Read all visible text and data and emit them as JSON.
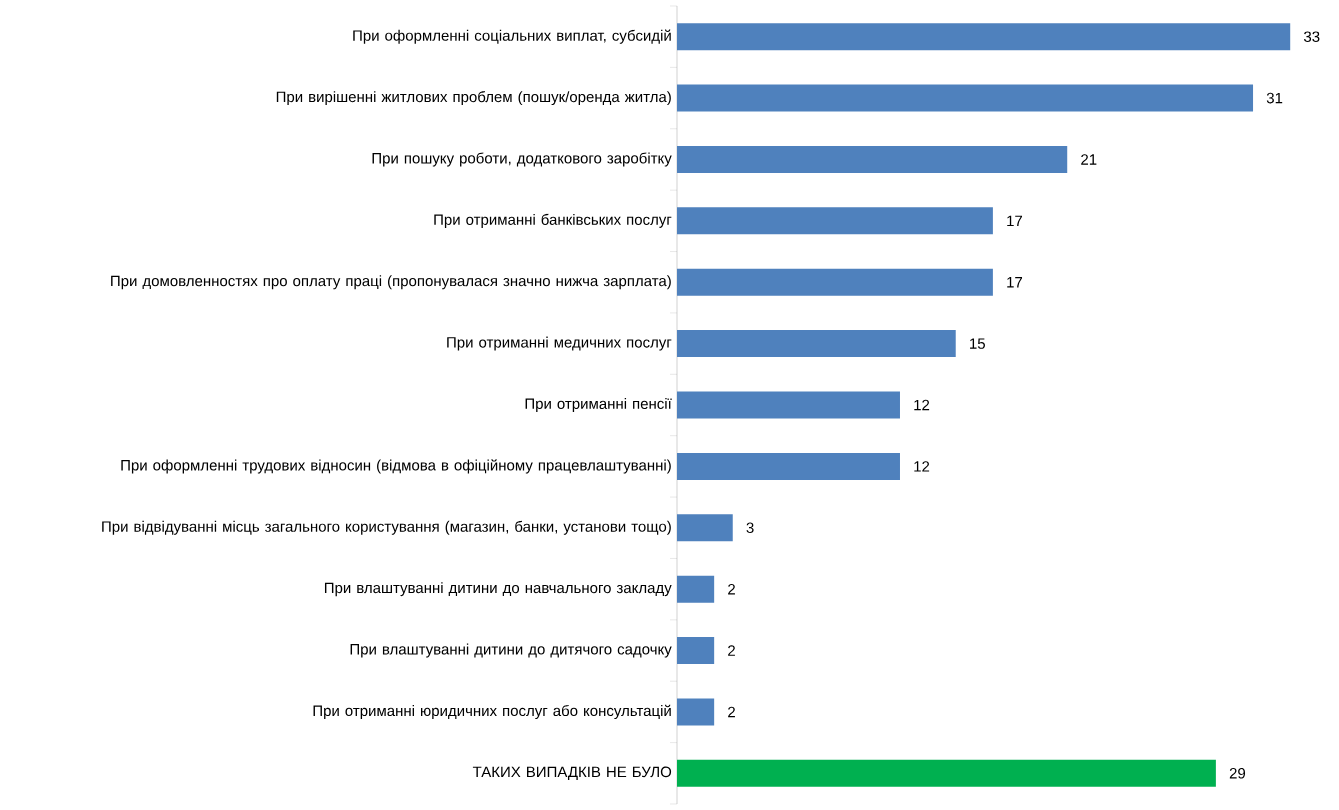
{
  "chart_data": {
    "type": "bar",
    "orientation": "horizontal",
    "categories": [
      "При оформленні соціальних виплат, субсидій",
      "При вирішенні житлових проблем (пошук/оренда житла)",
      "При пошуку роботи, додаткового заробітку",
      "При отриманні банківських послуг",
      "При домовленностях про оплату праці (пропонувалася значно нижча зарплата)",
      "При отриманні медичних послуг",
      "При отриманні пенсії",
      "При оформленні трудових відносин (відмова в офіційному працевлаштуванні)",
      "При відвідуванні місць загального користування (магазин, банки, установи тощо)",
      "При влаштуванні дитини до навчального закладу",
      "При влаштуванні дитини до дитячого садочку",
      "При отриманні юридичних послуг або консультацій",
      "ТАКИХ ВИПАДКІВ НЕ БУЛО"
    ],
    "values": [
      33,
      31,
      21,
      17,
      17,
      15,
      12,
      12,
      3,
      2,
      2,
      2,
      29
    ],
    "colors": [
      "#4f81bd",
      "#4f81bd",
      "#4f81bd",
      "#4f81bd",
      "#4f81bd",
      "#4f81bd",
      "#4f81bd",
      "#4f81bd",
      "#4f81bd",
      "#4f81bd",
      "#4f81bd",
      "#4f81bd",
      "#00b050"
    ],
    "data_labels": true
  }
}
